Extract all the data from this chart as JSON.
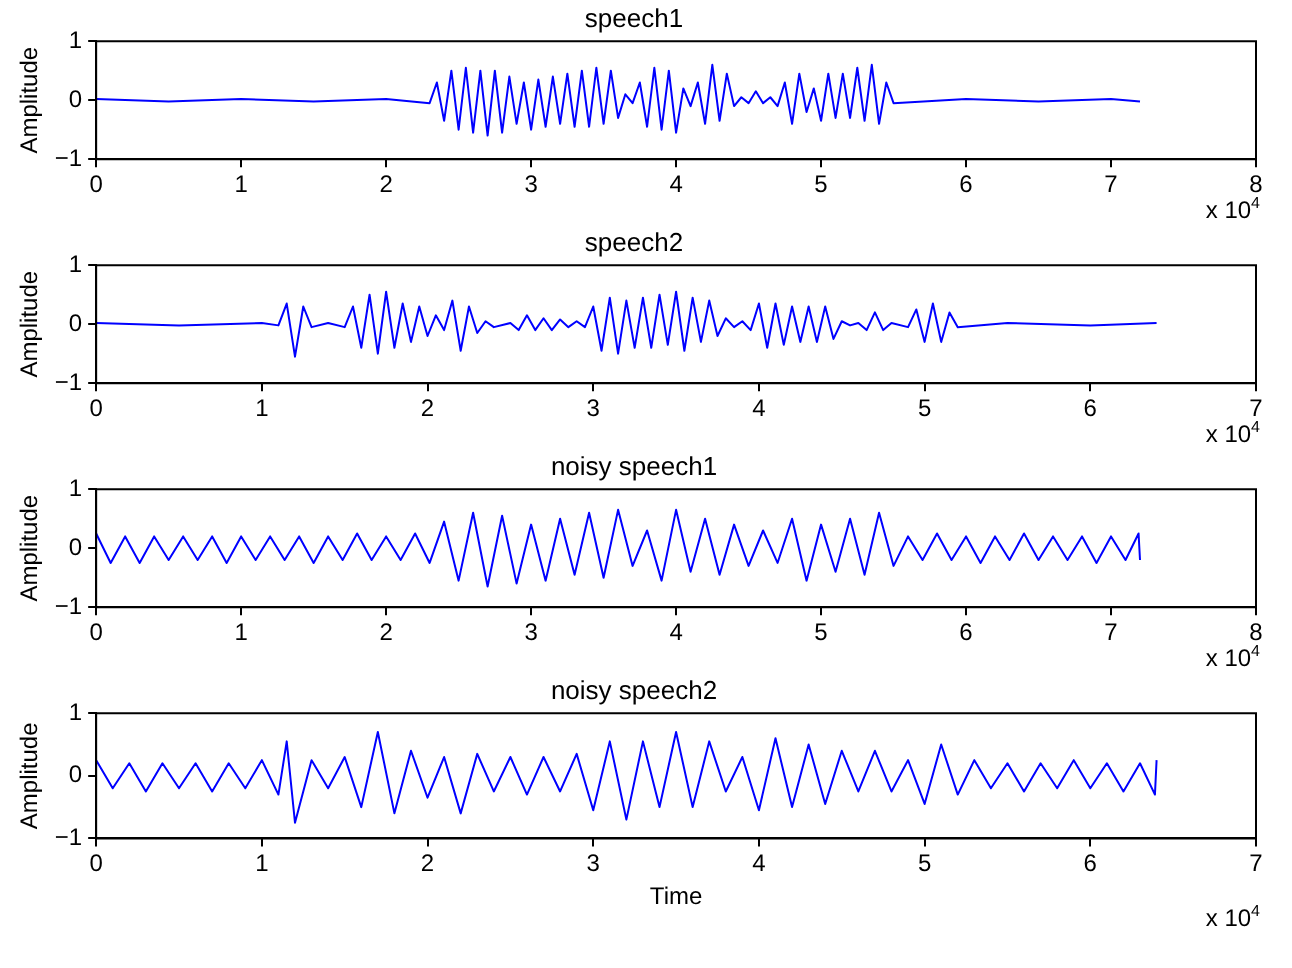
{
  "chart_data": [
    {
      "type": "line",
      "title": "speech1",
      "ylabel": "Amplitude",
      "color": "#0000ff",
      "grid": false,
      "marker": "none",
      "xlim": [
        0,
        8
      ],
      "ylim": [
        -1,
        1
      ],
      "yticks": [
        -1,
        0,
        1
      ],
      "xticks": [
        0,
        1,
        2,
        3,
        4,
        5,
        6,
        7,
        8
      ],
      "annotations": [
        "x 10$^{4}$"
      ],
      "x": [
        0,
        0.5,
        1,
        1.5,
        2,
        2.3,
        2.35,
        2.4,
        2.45,
        2.5,
        2.55,
        2.6,
        2.65,
        2.7,
        2.75,
        2.8,
        2.85,
        2.9,
        2.95,
        3,
        3.05,
        3.1,
        3.15,
        3.2,
        3.25,
        3.3,
        3.35,
        3.4,
        3.45,
        3.5,
        3.55,
        3.6,
        3.65,
        3.7,
        3.75,
        3.8,
        3.85,
        3.9,
        3.95,
        4,
        4.05,
        4.1,
        4.15,
        4.2,
        4.25,
        4.3,
        4.35,
        4.4,
        4.45,
        4.5,
        4.55,
        4.6,
        4.65,
        4.7,
        4.75,
        4.8,
        4.85,
        4.9,
        4.95,
        5,
        5.05,
        5.1,
        5.15,
        5.2,
        5.25,
        5.3,
        5.35,
        5.4,
        5.45,
        5.5,
        6,
        6.5,
        7,
        7.2
      ],
      "values": [
        0.02,
        -0.02,
        0.02,
        -0.02,
        0.02,
        -0.05,
        0.3,
        -0.35,
        0.5,
        -0.5,
        0.55,
        -0.55,
        0.5,
        -0.6,
        0.5,
        -0.55,
        0.4,
        -0.4,
        0.3,
        -0.5,
        0.35,
        -0.45,
        0.4,
        -0.4,
        0.45,
        -0.45,
        0.5,
        -0.45,
        0.55,
        -0.4,
        0.5,
        -0.3,
        0.1,
        -0.05,
        0.3,
        -0.45,
        0.55,
        -0.5,
        0.5,
        -0.55,
        0.2,
        -0.1,
        0.3,
        -0.4,
        0.6,
        -0.35,
        0.45,
        -0.1,
        0.05,
        -0.05,
        0.15,
        -0.05,
        0.05,
        -0.1,
        0.3,
        -0.4,
        0.45,
        -0.2,
        0.2,
        -0.35,
        0.45,
        -0.3,
        0.45,
        -0.3,
        0.55,
        -0.35,
        0.6,
        -0.4,
        0.3,
        -0.05,
        0.02,
        -0.02,
        0.02,
        -0.02
      ]
    },
    {
      "type": "line",
      "title": "speech2",
      "ylabel": "Amplitude",
      "color": "#0000ff",
      "grid": false,
      "marker": "none",
      "xlim": [
        0,
        7
      ],
      "ylim": [
        -1,
        1
      ],
      "yticks": [
        -1,
        0,
        1
      ],
      "xticks": [
        0,
        1,
        2,
        3,
        4,
        5,
        6,
        7
      ],
      "annotations": [
        "x 10$^{4}$"
      ],
      "x": [
        0,
        0.5,
        1,
        1.1,
        1.15,
        1.2,
        1.25,
        1.3,
        1.4,
        1.5,
        1.55,
        1.6,
        1.65,
        1.7,
        1.75,
        1.8,
        1.85,
        1.9,
        1.95,
        2,
        2.05,
        2.1,
        2.15,
        2.2,
        2.25,
        2.3,
        2.35,
        2.4,
        2.5,
        2.55,
        2.6,
        2.65,
        2.7,
        2.75,
        2.8,
        2.85,
        2.9,
        2.95,
        3,
        3.05,
        3.1,
        3.15,
        3.2,
        3.25,
        3.3,
        3.35,
        3.4,
        3.45,
        3.5,
        3.55,
        3.6,
        3.65,
        3.7,
        3.75,
        3.8,
        3.85,
        3.9,
        3.95,
        4,
        4.05,
        4.1,
        4.15,
        4.2,
        4.25,
        4.3,
        4.35,
        4.4,
        4.45,
        4.5,
        4.55,
        4.6,
        4.65,
        4.7,
        4.75,
        4.8,
        4.9,
        4.95,
        5,
        5.05,
        5.1,
        5.15,
        5.2,
        5.5,
        6,
        6.4
      ],
      "values": [
        0.02,
        -0.02,
        0.02,
        -0.02,
        0.35,
        -0.55,
        0.3,
        -0.05,
        0.02,
        -0.05,
        0.3,
        -0.4,
        0.5,
        -0.5,
        0.55,
        -0.4,
        0.35,
        -0.3,
        0.3,
        -0.2,
        0.15,
        -0.1,
        0.4,
        -0.45,
        0.3,
        -0.15,
        0.05,
        -0.05,
        0.02,
        -0.1,
        0.15,
        -0.1,
        0.1,
        -0.1,
        0.08,
        -0.05,
        0.05,
        -0.05,
        0.3,
        -0.45,
        0.45,
        -0.5,
        0.4,
        -0.4,
        0.45,
        -0.4,
        0.5,
        -0.35,
        0.55,
        -0.45,
        0.45,
        -0.3,
        0.4,
        -0.2,
        0.1,
        -0.05,
        0.05,
        -0.1,
        0.35,
        -0.4,
        0.35,
        -0.35,
        0.3,
        -0.3,
        0.3,
        -0.3,
        0.3,
        -0.25,
        0.05,
        -0.02,
        0.02,
        -0.1,
        0.2,
        -0.1,
        0.02,
        -0.05,
        0.25,
        -0.3,
        0.35,
        -0.3,
        0.2,
        -0.05,
        0.02,
        -0.02,
        0.02
      ]
    },
    {
      "type": "line",
      "title": "noisy speech1",
      "ylabel": "Amplitude",
      "color": "#0000ff",
      "grid": false,
      "marker": "none",
      "xlim": [
        0,
        8
      ],
      "ylim": [
        -1,
        1
      ],
      "yticks": [
        -1,
        0,
        1
      ],
      "xticks": [
        0,
        1,
        2,
        3,
        4,
        5,
        6,
        7,
        8
      ],
      "annotations": [
        "x 10$^{4}$"
      ],
      "x": [
        0,
        0.1,
        0.2,
        0.3,
        0.4,
        0.5,
        0.6,
        0.7,
        0.8,
        0.9,
        1,
        1.1,
        1.2,
        1.3,
        1.4,
        1.5,
        1.6,
        1.7,
        1.8,
        1.9,
        2,
        2.1,
        2.2,
        2.3,
        2.4,
        2.5,
        2.6,
        2.7,
        2.8,
        2.9,
        3,
        3.1,
        3.2,
        3.3,
        3.4,
        3.5,
        3.6,
        3.7,
        3.8,
        3.9,
        4,
        4.1,
        4.2,
        4.3,
        4.4,
        4.5,
        4.6,
        4.7,
        4.8,
        4.9,
        5,
        5.1,
        5.2,
        5.3,
        5.4,
        5.5,
        5.6,
        5.7,
        5.8,
        5.9,
        6,
        6.1,
        6.2,
        6.3,
        6.4,
        6.5,
        6.6,
        6.7,
        6.8,
        6.9,
        7,
        7.1,
        7.19,
        7.2
      ],
      "values": [
        0.25,
        -0.25,
        0.2,
        -0.25,
        0.2,
        -0.2,
        0.2,
        -0.2,
        0.2,
        -0.25,
        0.2,
        -0.2,
        0.2,
        -0.2,
        0.2,
        -0.25,
        0.2,
        -0.2,
        0.25,
        -0.2,
        0.2,
        -0.2,
        0.25,
        -0.25,
        0.45,
        -0.55,
        0.6,
        -0.65,
        0.55,
        -0.6,
        0.4,
        -0.55,
        0.5,
        -0.45,
        0.6,
        -0.5,
        0.65,
        -0.3,
        0.3,
        -0.55,
        0.65,
        -0.4,
        0.5,
        -0.45,
        0.4,
        -0.3,
        0.3,
        -0.25,
        0.5,
        -0.55,
        0.4,
        -0.4,
        0.5,
        -0.45,
        0.6,
        -0.3,
        0.2,
        -0.2,
        0.25,
        -0.2,
        0.2,
        -0.25,
        0.2,
        -0.2,
        0.25,
        -0.2,
        0.2,
        -0.2,
        0.2,
        -0.25,
        0.2,
        -0.2,
        0.25,
        -0.2
      ]
    },
    {
      "type": "line",
      "title": "noisy speech2",
      "ylabel": "Amplitude",
      "xlabel": "Time",
      "color": "#0000ff",
      "grid": false,
      "marker": "none",
      "xlim": [
        0,
        7
      ],
      "ylim": [
        -1,
        1
      ],
      "yticks": [
        -1,
        0,
        1
      ],
      "xticks": [
        0,
        1,
        2,
        3,
        4,
        5,
        6,
        7
      ],
      "annotations": [
        "x 10$^{4}$"
      ],
      "x": [
        0,
        0.1,
        0.2,
        0.3,
        0.4,
        0.5,
        0.6,
        0.7,
        0.8,
        0.9,
        1,
        1.1,
        1.15,
        1.2,
        1.3,
        1.4,
        1.5,
        1.6,
        1.7,
        1.8,
        1.9,
        2,
        2.1,
        2.2,
        2.3,
        2.4,
        2.5,
        2.6,
        2.7,
        2.8,
        2.9,
        3,
        3.1,
        3.2,
        3.3,
        3.4,
        3.5,
        3.6,
        3.7,
        3.8,
        3.9,
        4,
        4.1,
        4.2,
        4.3,
        4.4,
        4.5,
        4.6,
        4.7,
        4.8,
        4.9,
        5,
        5.1,
        5.2,
        5.3,
        5.4,
        5.5,
        5.6,
        5.7,
        5.8,
        5.9,
        6,
        6.1,
        6.2,
        6.3,
        6.39,
        6.4
      ],
      "values": [
        0.25,
        -0.2,
        0.2,
        -0.25,
        0.2,
        -0.2,
        0.2,
        -0.25,
        0.2,
        -0.2,
        0.25,
        -0.3,
        0.55,
        -0.75,
        0.25,
        -0.2,
        0.3,
        -0.5,
        0.7,
        -0.6,
        0.4,
        -0.35,
        0.3,
        -0.6,
        0.35,
        -0.25,
        0.3,
        -0.3,
        0.3,
        -0.25,
        0.35,
        -0.55,
        0.55,
        -0.7,
        0.55,
        -0.5,
        0.7,
        -0.5,
        0.55,
        -0.25,
        0.3,
        -0.55,
        0.6,
        -0.5,
        0.5,
        -0.45,
        0.4,
        -0.25,
        0.4,
        -0.25,
        0.25,
        -0.45,
        0.5,
        -0.3,
        0.25,
        -0.2,
        0.2,
        -0.25,
        0.2,
        -0.2,
        0.25,
        -0.2,
        0.2,
        -0.25,
        0.2,
        -0.3,
        0.25
      ]
    }
  ]
}
